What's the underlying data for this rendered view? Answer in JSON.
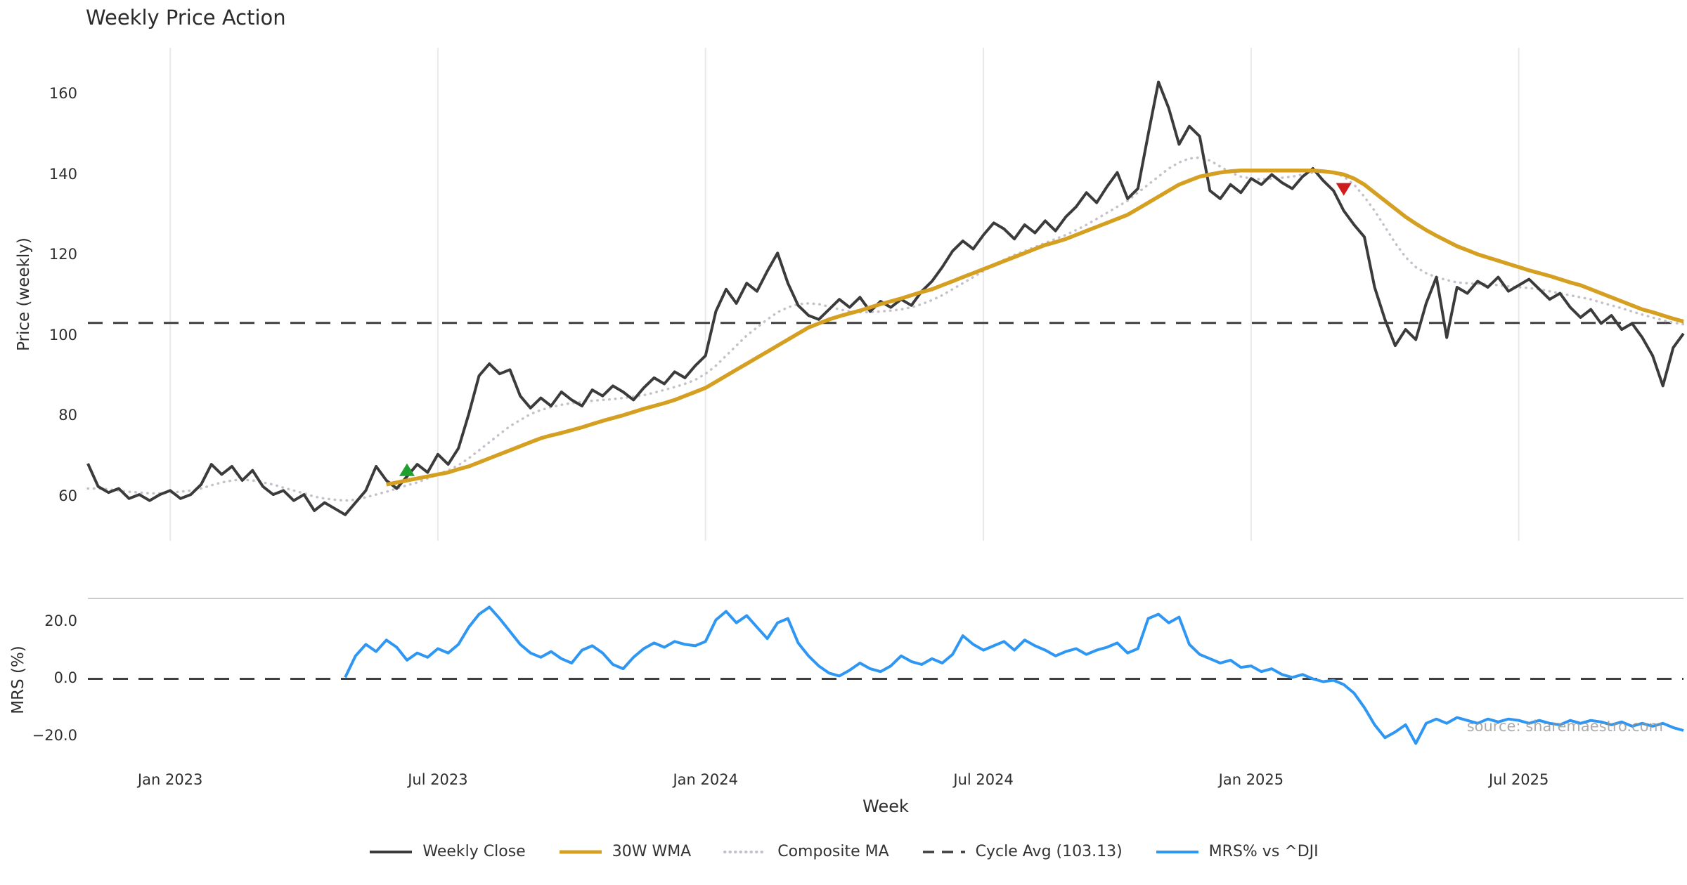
{
  "title": "Weekly Price Action",
  "xlabel": "Week",
  "source_note": "source: sharemaestro.com",
  "legend": {
    "items": [
      {
        "label": "Weekly Close",
        "color": "#3b3b3b",
        "style": "solid",
        "width": 4
      },
      {
        "label": "30W WMA",
        "color": "#d5a021",
        "style": "solid",
        "width": 5
      },
      {
        "label": "Composite MA",
        "color": "#c6c0ca",
        "style": "dotted",
        "width": 4
      },
      {
        "label": "Cycle Avg (103.13)",
        "color": "#3f3f3f",
        "style": "dashed",
        "width": 3.5
      },
      {
        "label": "MRS% vs ^DJI",
        "color": "#2e96f3",
        "style": "solid",
        "width": 4
      }
    ]
  },
  "chart_data": {
    "type": "line",
    "title": "Weekly Price Action",
    "xlabel": "Week",
    "n_points": 156,
    "x_unit": "weekly, Nov 2022 - Nov 2025",
    "x_tick_labels": [
      "Jan 2023",
      "Jul 2023",
      "Jan 2024",
      "Jul 2024",
      "Jan 2025",
      "Jul 2025"
    ],
    "x_tick_indices": [
      8,
      34,
      60,
      87,
      113,
      139
    ],
    "legend_position": "bottom-center",
    "panels": [
      {
        "id": "price",
        "ylabel": "Price (weekly)",
        "ylim": [
          49,
          171.5
        ],
        "grid_vertical": true,
        "yticks": [
          {
            "value": 60,
            "label": "60"
          },
          {
            "value": 80,
            "label": "80"
          },
          {
            "value": 100,
            "label": "100"
          },
          {
            "value": 120,
            "label": "120"
          },
          {
            "value": 140,
            "label": "140"
          },
          {
            "value": 160,
            "label": "160"
          }
        ],
        "hlines": [
          {
            "name": "cycle-avg-line",
            "label": "Cycle Avg (103.13)",
            "value": 103.13,
            "color": "#3f3f3f",
            "style": "dashed",
            "width": 3
          }
        ],
        "markers": [
          {
            "name": "buy-signal",
            "shape": "triangle-up",
            "color": "#1fa02e",
            "index": 31,
            "value": 66.5
          },
          {
            "name": "sell-signal",
            "shape": "triangle-down",
            "color": "#cf1d1d",
            "index": 122,
            "value": 136.5
          }
        ],
        "series": [
          {
            "name": "Composite MA",
            "color": "#c6c0ca",
            "style": "dotted",
            "width": 3.5,
            "values": [
              62,
              62,
              61.8,
              61.5,
              61.2,
              61,
              60.8,
              60.8,
              61,
              61.2,
              61.5,
              62,
              62.8,
              63.5,
              64,
              64.2,
              64,
              63.5,
              63,
              62.2,
              61.5,
              60.8,
              60,
              59.5,
              59.2,
              59,
              59.2,
              59.8,
              60.5,
              61.2,
              62,
              62.8,
              63.5,
              64.5,
              65.5,
              66.5,
              67.8,
              69.5,
              71.5,
              73.5,
              75.5,
              77.5,
              79,
              80.5,
              81.5,
              82.2,
              82.8,
              83.2,
              83.5,
              83.8,
              84,
              84.2,
              84.5,
              84.8,
              85.2,
              85.8,
              86.5,
              87.2,
              88,
              89,
              90.5,
              92.5,
              95,
              97.5,
              100,
              102,
              104,
              105.8,
              107,
              107.8,
              108,
              107.8,
              107.2,
              106.5,
              106,
              105.8,
              105.8,
              106,
              106.2,
              106.5,
              107,
              107.8,
              108.8,
              110,
              111.5,
              113,
              114.5,
              116,
              117.5,
              118.8,
              120,
              121,
              122,
              123,
              124,
              125,
              126.2,
              127.5,
              129,
              130.5,
              132,
              133.5,
              135.5,
              137.5,
              139.5,
              141.5,
              143,
              144,
              144.2,
              143.5,
              142,
              140.5,
              139.5,
              139,
              138.8,
              139,
              139.2,
              139.5,
              140,
              140.5,
              140.8,
              140.5,
              139.5,
              137.5,
              134.5,
              131,
              127,
              123,
              119.5,
              117,
              115.5,
              114.5,
              113.8,
              113.2,
              113,
              112.8,
              112.8,
              112.5,
              112.2,
              112,
              111.8,
              111.5,
              111,
              110.5,
              110,
              109.5,
              109,
              108.2,
              107.5,
              106.8,
              106,
              105.2,
              104.5,
              103.8,
              103.2,
              102.8
            ]
          },
          {
            "name": "Weekly Close",
            "color": "#3b3b3b",
            "style": "solid",
            "width": 4,
            "values": [
              68.2,
              62.5,
              61,
              62,
              59.5,
              60.5,
              59,
              60.5,
              61.5,
              59.5,
              60.5,
              63,
              68,
              65.5,
              67.5,
              64,
              66.5,
              62.5,
              60.5,
              61.5,
              59,
              60.5,
              56.5,
              58.5,
              57,
              55.5,
              58.5,
              61.5,
              67.5,
              64,
              62,
              65,
              68,
              66,
              70.5,
              68,
              72,
              80.5,
              90,
              93,
              90.5,
              91.5,
              85,
              82,
              84.5,
              82.5,
              86,
              84,
              82.5,
              86.5,
              85,
              87.5,
              86,
              84,
              87,
              89.5,
              88,
              91,
              89.5,
              92.5,
              95,
              106,
              111.5,
              108,
              113,
              111,
              116,
              120.5,
              113,
              107.5,
              105,
              104,
              106.5,
              109,
              107,
              109.5,
              106,
              108.5,
              107,
              109,
              107.5,
              111,
              113.5,
              117,
              121,
              123.5,
              121.5,
              125,
              128,
              126.5,
              124,
              127.5,
              125.5,
              128.5,
              126,
              129.5,
              132,
              135.5,
              133,
              137,
              140.5,
              134,
              136.5,
              150,
              163,
              156.5,
              147.5,
              152,
              149.5,
              136,
              134,
              137.5,
              135.5,
              139,
              137.5,
              140,
              138,
              136.5,
              139.5,
              141.5,
              138.5,
              136,
              131,
              127.5,
              124.5,
              112,
              104,
              97.5,
              101.5,
              99,
              108,
              114.5,
              99.5,
              112,
              110.5,
              113.5,
              112,
              114.5,
              111,
              112.5,
              114,
              111.5,
              109,
              110.5,
              107,
              104.5,
              106.5,
              103,
              105,
              101.5,
              103,
              99.5,
              95,
              87.5,
              97,
              100.5
            ]
          },
          {
            "name": "30W WMA",
            "color": "#d5a021",
            "style": "solid",
            "width": 5.5,
            "values": [
              null,
              null,
              null,
              null,
              null,
              null,
              null,
              null,
              null,
              null,
              null,
              null,
              null,
              null,
              null,
              null,
              null,
              null,
              null,
              null,
              null,
              null,
              null,
              null,
              null,
              null,
              null,
              null,
              null,
              63,
              63.5,
              64,
              64.5,
              65,
              65.5,
              66,
              66.8,
              67.5,
              68.5,
              69.5,
              70.5,
              71.5,
              72.5,
              73.5,
              74.5,
              75.2,
              75.8,
              76.5,
              77.2,
              78,
              78.8,
              79.5,
              80.2,
              81,
              81.8,
              82.5,
              83.2,
              84,
              85,
              86,
              87,
              88.5,
              90,
              91.5,
              93,
              94.5,
              96,
              97.5,
              99,
              100.5,
              102,
              103,
              104,
              104.8,
              105.5,
              106.2,
              107,
              107.8,
              108.5,
              109.2,
              110,
              110.8,
              111.5,
              112.5,
              113.5,
              114.5,
              115.5,
              116.5,
              117.5,
              118.5,
              119.5,
              120.5,
              121.5,
              122.5,
              123.2,
              124,
              125,
              126,
              127,
              128,
              129,
              130,
              131.5,
              133,
              134.5,
              136,
              137.5,
              138.5,
              139.5,
              140,
              140.5,
              140.8,
              141,
              141,
              141,
              141,
              141,
              141,
              141,
              141,
              140.8,
              140.5,
              140,
              139,
              137.5,
              135.5,
              133.5,
              131.5,
              129.5,
              127.8,
              126.2,
              124.8,
              123.5,
              122.2,
              121.2,
              120.2,
              119.4,
              118.6,
              117.8,
              117,
              116.2,
              115.5,
              114.8,
              114,
              113.2,
              112.5,
              111.5,
              110.5,
              109.5,
              108.5,
              107.5,
              106.5,
              105.8,
              105,
              104.2,
              103.5
            ]
          }
        ]
      },
      {
        "id": "mrs",
        "ylabel": "MRS (%)",
        "ylim": [
          -29,
          28
        ],
        "grid_vertical": false,
        "top_spine": true,
        "yticks": [
          {
            "value": 20,
            "label": "20.0"
          },
          {
            "value": 0,
            "label": "0.0"
          },
          {
            "value": -20,
            "label": "−20.0"
          }
        ],
        "hlines": [
          {
            "name": "zero-line",
            "label": "",
            "value": 0,
            "color": "#3f3f3f",
            "style": "dashed",
            "width": 3
          }
        ],
        "markers": [],
        "series": [
          {
            "name": "MRS% vs ^DJI",
            "color": "#2e96f3",
            "style": "solid",
            "width": 4,
            "values": [
              null,
              null,
              null,
              null,
              null,
              null,
              null,
              null,
              null,
              null,
              null,
              null,
              null,
              null,
              null,
              null,
              null,
              null,
              null,
              null,
              null,
              null,
              null,
              null,
              null,
              0.5,
              8,
              12,
              9.5,
              13.5,
              11,
              6.5,
              9,
              7.5,
              10.5,
              9,
              12,
              18,
              22.5,
              25,
              21,
              16.5,
              12,
              9,
              7.5,
              9.5,
              7,
              5.5,
              10,
              11.5,
              9,
              5,
              3.5,
              7.5,
              10.5,
              12.5,
              11,
              13,
              12,
              11.5,
              13,
              20.5,
              23.5,
              19.5,
              22,
              18,
              14,
              19.5,
              21,
              12.5,
              8,
              4.5,
              2,
              1,
              3,
              5.5,
              3.5,
              2.5,
              4.5,
              8,
              6,
              5,
              7,
              5.5,
              8.5,
              15,
              12,
              10,
              11.5,
              13,
              10,
              13.5,
              11.5,
              10,
              8,
              9.5,
              10.5,
              8.5,
              10,
              11,
              12.5,
              9,
              10.5,
              21,
              22.5,
              19.5,
              21.5,
              12,
              8.5,
              7,
              5.5,
              6.5,
              4,
              4.5,
              2.5,
              3.5,
              1.5,
              0.5,
              1.5,
              0,
              -1,
              -0.5,
              -2,
              -5,
              -10,
              -16,
              -20.5,
              -18.5,
              -16,
              -22.5,
              -15.5,
              -14,
              -15.5,
              -13.5,
              -14.5,
              -15.5,
              -14,
              -15,
              -14,
              -14.5,
              -15.5,
              -14.5,
              -15.5,
              -16,
              -14.5,
              -15.5,
              -14.5,
              -15,
              -16,
              -15,
              -16.5,
              -15.5,
              -16.5,
              -15.5,
              -17,
              -18
            ]
          }
        ]
      }
    ]
  }
}
